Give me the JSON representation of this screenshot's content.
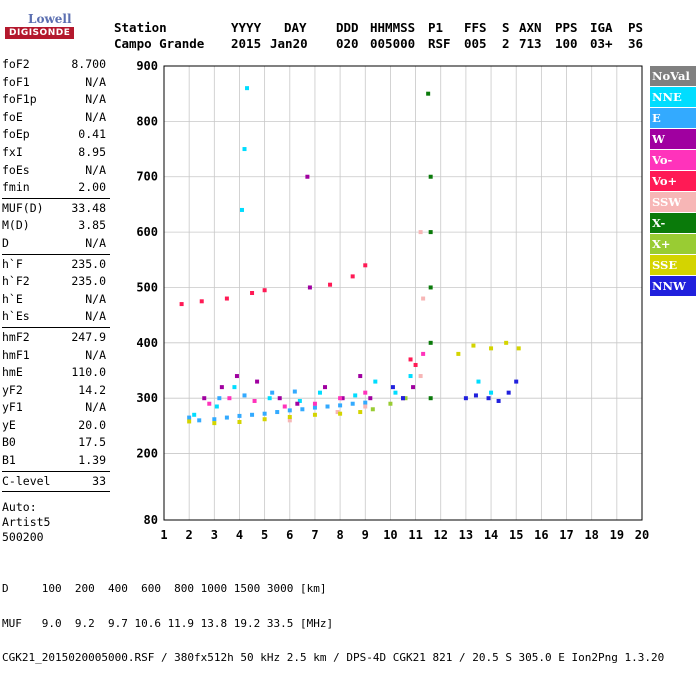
{
  "logo": {
    "line1": "Lowell",
    "line2": "DIGISONDE"
  },
  "header": {
    "labels": [
      "Station",
      "YYYY",
      "DAY",
      "DDD",
      "HHMMSS",
      "P1",
      "FFS",
      "S",
      "AXN",
      "PPS",
      "IGA",
      "PS"
    ],
    "values": [
      "Campo Grande",
      "2015",
      "Jan20",
      "020",
      "005000",
      "RSF",
      "005",
      "2",
      "713",
      "100",
      "03+",
      "36"
    ]
  },
  "params": [
    [
      [
        "foF2",
        "8.700"
      ],
      [
        "foF1",
        "N/A"
      ],
      [
        "foF1p",
        "N/A"
      ],
      [
        "foE",
        "N/A"
      ],
      [
        "foEp",
        "0.41"
      ],
      [
        "fxI",
        "8.95"
      ],
      [
        "foEs",
        "N/A"
      ],
      [
        "fmin",
        "2.00"
      ]
    ],
    [
      [
        "MUF(D)",
        "33.48"
      ],
      [
        "M(D)",
        "3.85"
      ],
      [
        "D",
        "N/A"
      ]
    ],
    [
      [
        "h`F",
        "235.0"
      ],
      [
        "h`F2",
        "235.0"
      ],
      [
        "h`E",
        "N/A"
      ],
      [
        "h`Es",
        "N/A"
      ]
    ],
    [
      [
        "hmF2",
        "247.9"
      ],
      [
        "hmF1",
        "N/A"
      ],
      [
        "hmE",
        "110.0"
      ],
      [
        "yF2",
        "14.2"
      ],
      [
        "yF1",
        "N/A"
      ],
      [
        "yE",
        "20.0"
      ],
      [
        "B0",
        "17.5"
      ],
      [
        "B1",
        "1.39"
      ]
    ],
    [
      [
        "C-level",
        "33"
      ]
    ]
  ],
  "auto": [
    "Auto:",
    "Artist5",
    "500200"
  ],
  "legend": [
    {
      "label": "NoVal",
      "color": "#808080"
    },
    {
      "label": "NNE",
      "color": "#00ddff"
    },
    {
      "label": "E",
      "color": "#33aaff"
    },
    {
      "label": "W",
      "color": "#a000a0"
    },
    {
      "label": "Vo-",
      "color": "#ff33bb"
    },
    {
      "label": "Vo+",
      "color": "#ff1a55"
    },
    {
      "label": "SSW",
      "color": "#f7b6b6"
    },
    {
      "label": "X-",
      "color": "#0a7a0a"
    },
    {
      "label": "X+",
      "color": "#99cc33"
    },
    {
      "label": "SSE",
      "color": "#d4d400"
    },
    {
      "label": "NNW",
      "color": "#2020dd"
    }
  ],
  "footer": {
    "line1": "D     100  200  400  600  800 1000 1500 3000 [km]",
    "line2": "MUF   9.0  9.2  9.7 10.6 11.9 13.8 19.2 33.5 [MHz]",
    "line3": "CGK21_2015020005000.RSF / 380fx512h 50 kHz 2.5 km / DPS-4D CGK21 821 / 20.5 S 305.0 E Ion2Png 1.3.20"
  },
  "chart_data": {
    "type": "scatter",
    "xlim": [
      1,
      20
    ],
    "ylim": [
      80,
      900
    ],
    "xticks": [
      1,
      2,
      3,
      4,
      5,
      6,
      7,
      8,
      9,
      10,
      11,
      12,
      13,
      14,
      15,
      16,
      17,
      18,
      19,
      20
    ],
    "yticks": [
      80,
      200,
      300,
      400,
      500,
      600,
      700,
      800,
      900
    ],
    "grid": true,
    "legend_position": "right",
    "series": [
      {
        "name": "E",
        "values": [
          [
            2.0,
            265
          ],
          [
            2.4,
            260
          ],
          [
            3.0,
            262
          ],
          [
            3.5,
            265
          ],
          [
            4.0,
            268
          ],
          [
            4.5,
            270
          ],
          [
            5.0,
            272
          ],
          [
            5.5,
            275
          ],
          [
            6.0,
            278
          ],
          [
            6.5,
            280
          ],
          [
            7.0,
            283
          ],
          [
            7.5,
            285
          ],
          [
            8.0,
            287
          ],
          [
            8.5,
            290
          ],
          [
            9.0,
            292
          ],
          [
            3.2,
            300
          ],
          [
            4.2,
            305
          ],
          [
            5.3,
            310
          ],
          [
            6.2,
            312
          ]
        ]
      },
      {
        "name": "NNE",
        "values": [
          [
            2.2,
            270
          ],
          [
            3.1,
            285
          ],
          [
            3.8,
            320
          ],
          [
            4.1,
            640
          ],
          [
            4.2,
            750
          ],
          [
            4.3,
            860
          ],
          [
            5.2,
            300
          ],
          [
            6.4,
            295
          ],
          [
            7.2,
            310
          ],
          [
            8.6,
            305
          ],
          [
            9.4,
            330
          ],
          [
            10.2,
            310
          ],
          [
            10.8,
            340
          ],
          [
            13.5,
            330
          ],
          [
            14.0,
            310
          ]
        ]
      },
      {
        "name": "W",
        "values": [
          [
            2.6,
            300
          ],
          [
            3.3,
            320
          ],
          [
            3.9,
            340
          ],
          [
            4.7,
            330
          ],
          [
            5.6,
            300
          ],
          [
            6.3,
            290
          ],
          [
            6.7,
            700
          ],
          [
            6.8,
            500
          ],
          [
            7.4,
            320
          ],
          [
            8.1,
            300
          ],
          [
            8.8,
            340
          ],
          [
            9.2,
            300
          ],
          [
            10.5,
            300
          ],
          [
            10.9,
            320
          ]
        ]
      },
      {
        "name": "Vo+",
        "values": [
          [
            1.7,
            470
          ],
          [
            2.5,
            475
          ],
          [
            3.5,
            480
          ],
          [
            4.5,
            490
          ],
          [
            5.0,
            495
          ],
          [
            7.6,
            505
          ],
          [
            8.5,
            520
          ],
          [
            9.0,
            540
          ],
          [
            10.8,
            370
          ],
          [
            11.0,
            360
          ]
        ]
      },
      {
        "name": "Vo-",
        "values": [
          [
            2.8,
            290
          ],
          [
            3.6,
            300
          ],
          [
            4.6,
            295
          ],
          [
            5.8,
            285
          ],
          [
            7.0,
            290
          ],
          [
            8.0,
            300
          ],
          [
            9.0,
            310
          ],
          [
            11.3,
            380
          ]
        ]
      },
      {
        "name": "SSW",
        "values": [
          [
            6.0,
            260
          ],
          [
            7.9,
            275
          ],
          [
            9.0,
            285
          ],
          [
            11.2,
            600
          ],
          [
            11.3,
            480
          ],
          [
            11.2,
            340
          ]
        ]
      },
      {
        "name": "X-",
        "values": [
          [
            11.6,
            300
          ],
          [
            11.6,
            400
          ],
          [
            11.6,
            500
          ],
          [
            11.6,
            600
          ],
          [
            11.6,
            700
          ],
          [
            11.5,
            850
          ]
        ]
      },
      {
        "name": "X+",
        "values": [
          [
            9.3,
            280
          ],
          [
            10.0,
            290
          ],
          [
            10.6,
            300
          ]
        ]
      },
      {
        "name": "SSE",
        "values": [
          [
            2.0,
            258
          ],
          [
            3.0,
            255
          ],
          [
            4.0,
            257
          ],
          [
            5.0,
            262
          ],
          [
            6.0,
            266
          ],
          [
            7.0,
            270
          ],
          [
            8.0,
            272
          ],
          [
            8.8,
            275
          ],
          [
            12.7,
            380
          ],
          [
            13.3,
            395
          ],
          [
            14.0,
            390
          ],
          [
            14.6,
            400
          ],
          [
            15.1,
            390
          ]
        ]
      },
      {
        "name": "NNW",
        "values": [
          [
            10.1,
            320
          ],
          [
            10.5,
            300
          ],
          [
            13.0,
            300
          ],
          [
            13.4,
            305
          ],
          [
            13.9,
            300
          ],
          [
            14.3,
            295
          ],
          [
            14.7,
            310
          ],
          [
            15.0,
            330
          ]
        ]
      }
    ]
  }
}
